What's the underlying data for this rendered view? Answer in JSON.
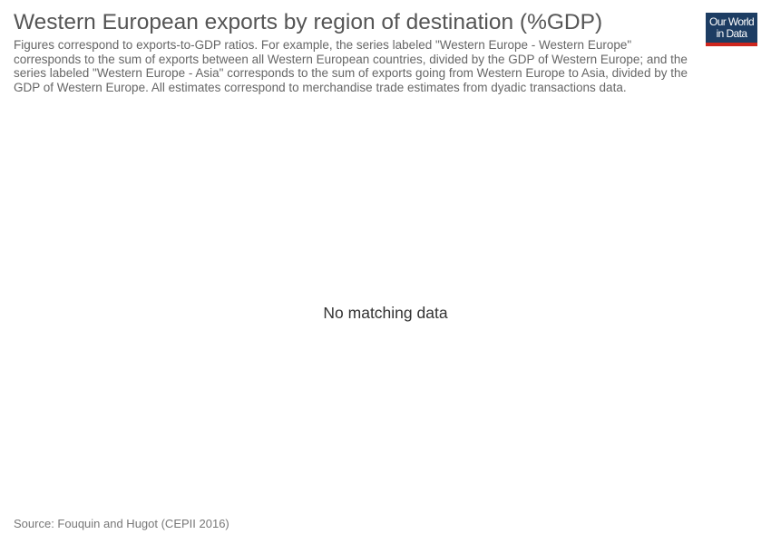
{
  "header": {
    "title": "Western European exports by region of destination (%GDP)",
    "subtitle": "Figures correspond to exports-to-GDP ratios. For example, the series labeled \"Western Europe - Western Europe\" corresponds to the sum of exports between all Western European countries, divided by the GDP of Western Europe; and the series labeled \"Western Europe - Asia\" corresponds to the sum of exports going from Western Europe to Asia, divided by the GDP of Western Europe. All estimates correspond to merchandise trade estimates from dyadic transactions data."
  },
  "logo": {
    "line1": "Our World",
    "line2": "in Data",
    "background_color": "#1d3d63",
    "accent_color": "#ce261e"
  },
  "chart_data": {
    "type": "line",
    "series": [],
    "message": "No matching data"
  },
  "footer": {
    "source": "Source: Fouquin and Hugot (CEPII 2016)"
  }
}
